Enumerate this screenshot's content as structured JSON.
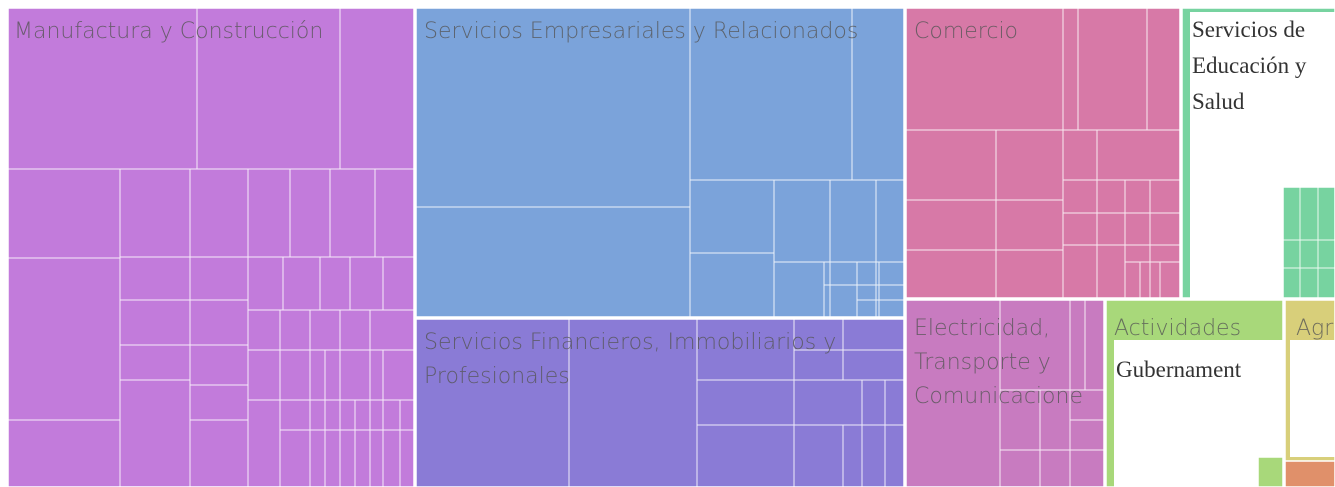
{
  "treemap": {
    "blocks": [
      {
        "label": "Manufactura y Construcción"
      },
      {
        "label": "Servicios Empresariales y Relacionados"
      },
      {
        "label": "Servicios Financieros, Immobiliarios y Profesionales"
      },
      {
        "label": "Comercio"
      },
      {
        "label": "Servicios de Educación y Salud"
      },
      {
        "label": "Electricidad, Transporte y Comunicacione"
      },
      {
        "label": "Actividades"
      },
      {
        "label": "Gubernament"
      },
      {
        "label": "Agr"
      }
    ]
  }
}
